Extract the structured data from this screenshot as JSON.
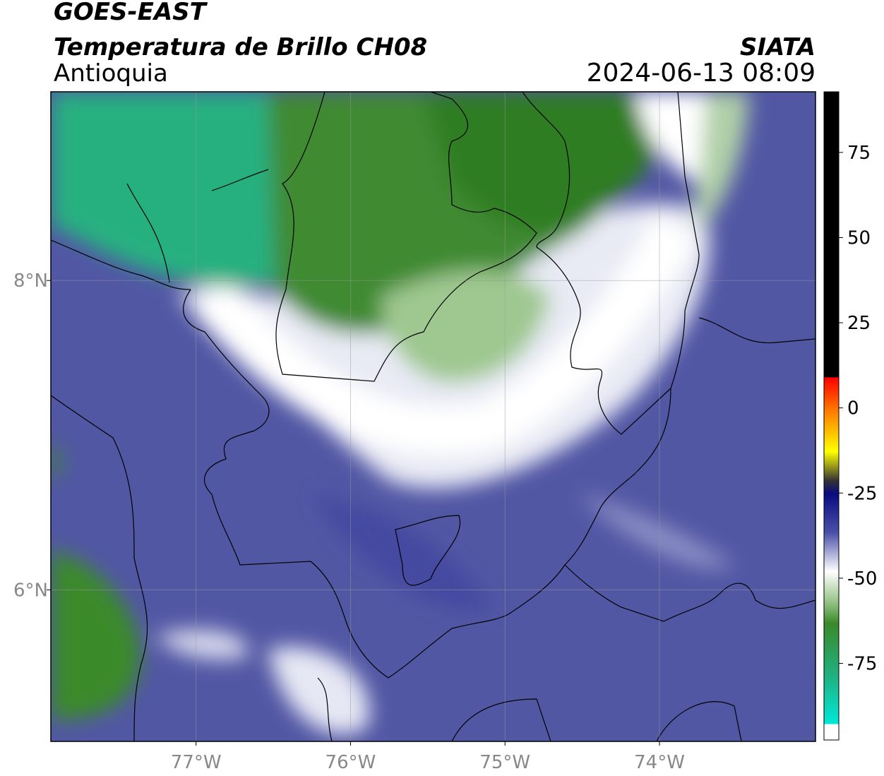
{
  "header": {
    "satellite": "GOES-EAST",
    "product": "Temperatura de Brillo CH08",
    "region": "Antioquia",
    "source": "SIATA",
    "datetime": "2024-06-13 08:09"
  },
  "map": {
    "lon_lim": [
      -77.94,
      -72.99
    ],
    "lat_lim": [
      5.02,
      9.22
    ],
    "lon_ticks": [
      {
        "value": -77,
        "label": "77°W"
      },
      {
        "value": -76,
        "label": "76°W"
      },
      {
        "value": -75,
        "label": "75°W"
      },
      {
        "value": -74,
        "label": "74°W"
      }
    ],
    "lat_ticks": [
      {
        "value": 6,
        "label": "6°N"
      },
      {
        "value": 8,
        "label": "8°N"
      }
    ],
    "grid": true
  },
  "colorbar": {
    "lim": [
      -97.5,
      92.8
    ],
    "ticks": [
      -75,
      -50,
      -25,
      0,
      25,
      50,
      75
    ]
  }
}
